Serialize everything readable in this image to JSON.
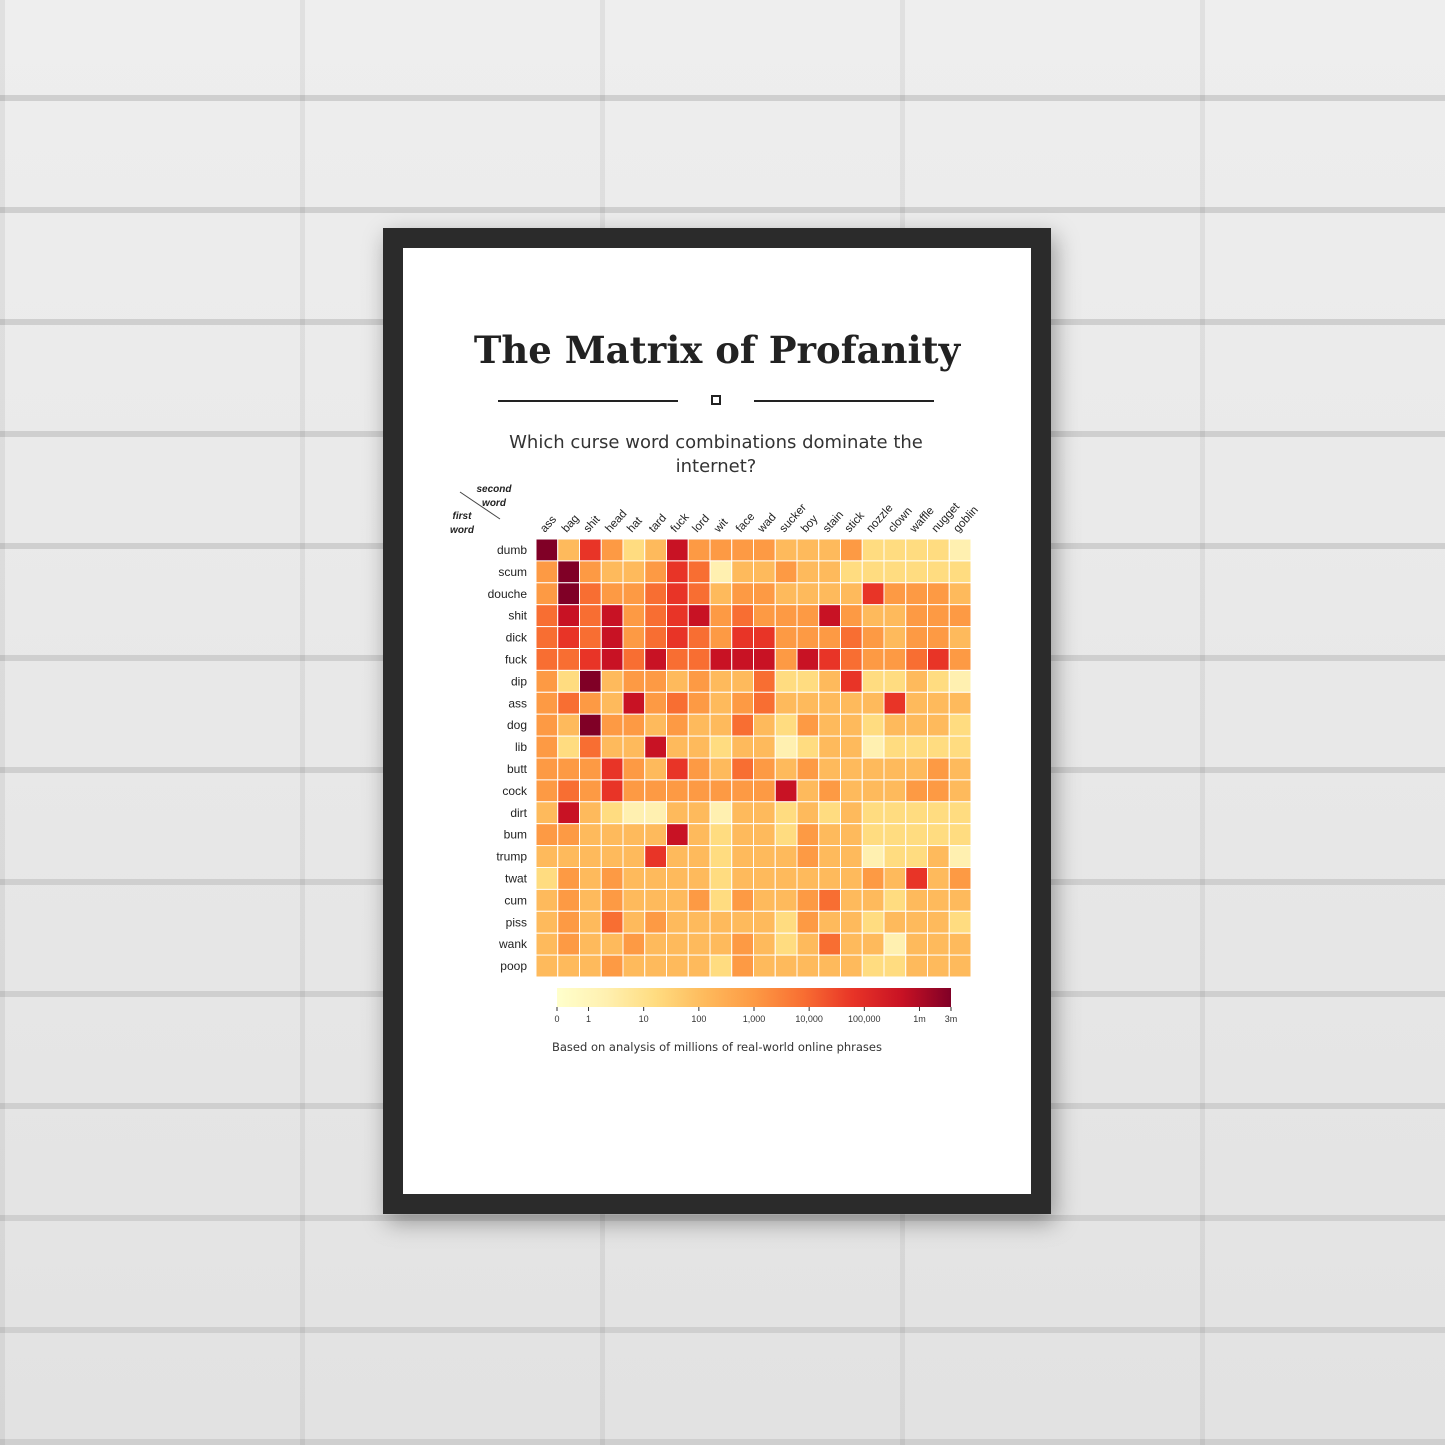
{
  "poster": {
    "title": "The Matrix of Profanity",
    "subtitle": "Which curse word combinations dominate the internet?",
    "footnote": "Based on analysis of millions of real-world online phrases",
    "corner_second": [
      "second",
      "word"
    ],
    "corner_first": [
      "first",
      "word"
    ]
  },
  "chart_data": {
    "type": "heatmap",
    "x_label": "second word",
    "y_label": "first word",
    "x": [
      "ass",
      "bag",
      "shit",
      "head",
      "hat",
      "tard",
      "fuck",
      "lord",
      "wit",
      "face",
      "wad",
      "sucker",
      "boy",
      "stain",
      "stick",
      "nozzle",
      "clown",
      "waffle",
      "nugget",
      "goblin"
    ],
    "y": [
      "dumb",
      "scum",
      "douche",
      "shit",
      "dick",
      "fuck",
      "dip",
      "ass",
      "dog",
      "lib",
      "butt",
      "cock",
      "dirt",
      "bum",
      "trump",
      "twat",
      "cum",
      "piss",
      "wank",
      "poop"
    ],
    "scale": "log",
    "values_level_0_to_8": [
      [
        8,
        3,
        6,
        4,
        2,
        3,
        7,
        4,
        4,
        4,
        4,
        3,
        3,
        3,
        4,
        2,
        2,
        2,
        2,
        1
      ],
      [
        4,
        8,
        4,
        3,
        3,
        4,
        6,
        5,
        1,
        3,
        3,
        4,
        3,
        3,
        2,
        2,
        2,
        2,
        2,
        2
      ],
      [
        4,
        8,
        5,
        4,
        4,
        5,
        6,
        5,
        3,
        4,
        4,
        3,
        3,
        3,
        3,
        6,
        4,
        4,
        4,
        3
      ],
      [
        5,
        7,
        5,
        7,
        4,
        5,
        6,
        7,
        4,
        5,
        4,
        4,
        4,
        7,
        4,
        3,
        3,
        4,
        4,
        4
      ],
      [
        5,
        6,
        5,
        7,
        4,
        5,
        6,
        5,
        4,
        6,
        6,
        4,
        4,
        4,
        5,
        4,
        3,
        4,
        4,
        3
      ],
      [
        5,
        5,
        6,
        7,
        5,
        7,
        5,
        5,
        7,
        7,
        7,
        4,
        7,
        6,
        5,
        4,
        4,
        5,
        6,
        4
      ],
      [
        4,
        2,
        8,
        3,
        4,
        4,
        3,
        4,
        3,
        3,
        5,
        2,
        2,
        3,
        6,
        2,
        2,
        3,
        2,
        1
      ],
      [
        4,
        5,
        4,
        3,
        7,
        4,
        5,
        4,
        3,
        4,
        5,
        3,
        3,
        3,
        3,
        3,
        6,
        3,
        3,
        3
      ],
      [
        4,
        3,
        8,
        4,
        4,
        3,
        4,
        3,
        3,
        5,
        3,
        2,
        4,
        3,
        3,
        2,
        3,
        3,
        3,
        2
      ],
      [
        4,
        2,
        5,
        3,
        3,
        7,
        3,
        3,
        2,
        3,
        3,
        1,
        2,
        3,
        3,
        1,
        2,
        2,
        2,
        2
      ],
      [
        4,
        4,
        4,
        6,
        4,
        3,
        6,
        4,
        3,
        5,
        4,
        3,
        4,
        3,
        3,
        3,
        3,
        3,
        4,
        3
      ],
      [
        4,
        5,
        4,
        6,
        4,
        4,
        4,
        4,
        4,
        4,
        4,
        7,
        3,
        4,
        3,
        3,
        3,
        4,
        4,
        3
      ],
      [
        3,
        7,
        3,
        2,
        1,
        1,
        3,
        3,
        1,
        3,
        3,
        2,
        3,
        2,
        3,
        2,
        2,
        2,
        2,
        2
      ],
      [
        4,
        4,
        3,
        3,
        3,
        3,
        7,
        3,
        2,
        3,
        3,
        2,
        4,
        3,
        3,
        2,
        2,
        2,
        2,
        2
      ],
      [
        3,
        3,
        3,
        3,
        3,
        6,
        3,
        3,
        2,
        3,
        3,
        3,
        4,
        3,
        3,
        1,
        2,
        2,
        3,
        1
      ],
      [
        2,
        4,
        3,
        4,
        3,
        3,
        3,
        3,
        2,
        3,
        3,
        3,
        3,
        3,
        3,
        4,
        3,
        6,
        3,
        4
      ],
      [
        3,
        4,
        3,
        4,
        3,
        3,
        3,
        4,
        2,
        4,
        3,
        3,
        4,
        5,
        3,
        3,
        2,
        3,
        3,
        3
      ],
      [
        3,
        4,
        3,
        5,
        3,
        4,
        3,
        3,
        3,
        3,
        3,
        2,
        4,
        3,
        3,
        2,
        3,
        3,
        3,
        2
      ],
      [
        3,
        4,
        3,
        3,
        4,
        3,
        3,
        3,
        3,
        4,
        3,
        2,
        3,
        5,
        3,
        3,
        1,
        3,
        3,
        3
      ],
      [
        3,
        3,
        3,
        4,
        3,
        3,
        3,
        3,
        2,
        4,
        3,
        3,
        3,
        3,
        3,
        2,
        2,
        3,
        3,
        3
      ]
    ],
    "colorbar": {
      "ticks": [
        "0",
        "1",
        "10",
        "100",
        "1,000",
        "10,000",
        "100,000",
        "1m",
        "3m"
      ],
      "tick_fraction": [
        0,
        0.08,
        0.22,
        0.36,
        0.5,
        0.64,
        0.78,
        0.92,
        1.0
      ],
      "colors": [
        "#ffffcc",
        "#fff0b0",
        "#ffdc80",
        "#feba5c",
        "#fd9a44",
        "#f86e32",
        "#e83427",
        "#c81224",
        "#800026"
      ]
    },
    "grid": true,
    "legend": "bottom colorbar"
  }
}
